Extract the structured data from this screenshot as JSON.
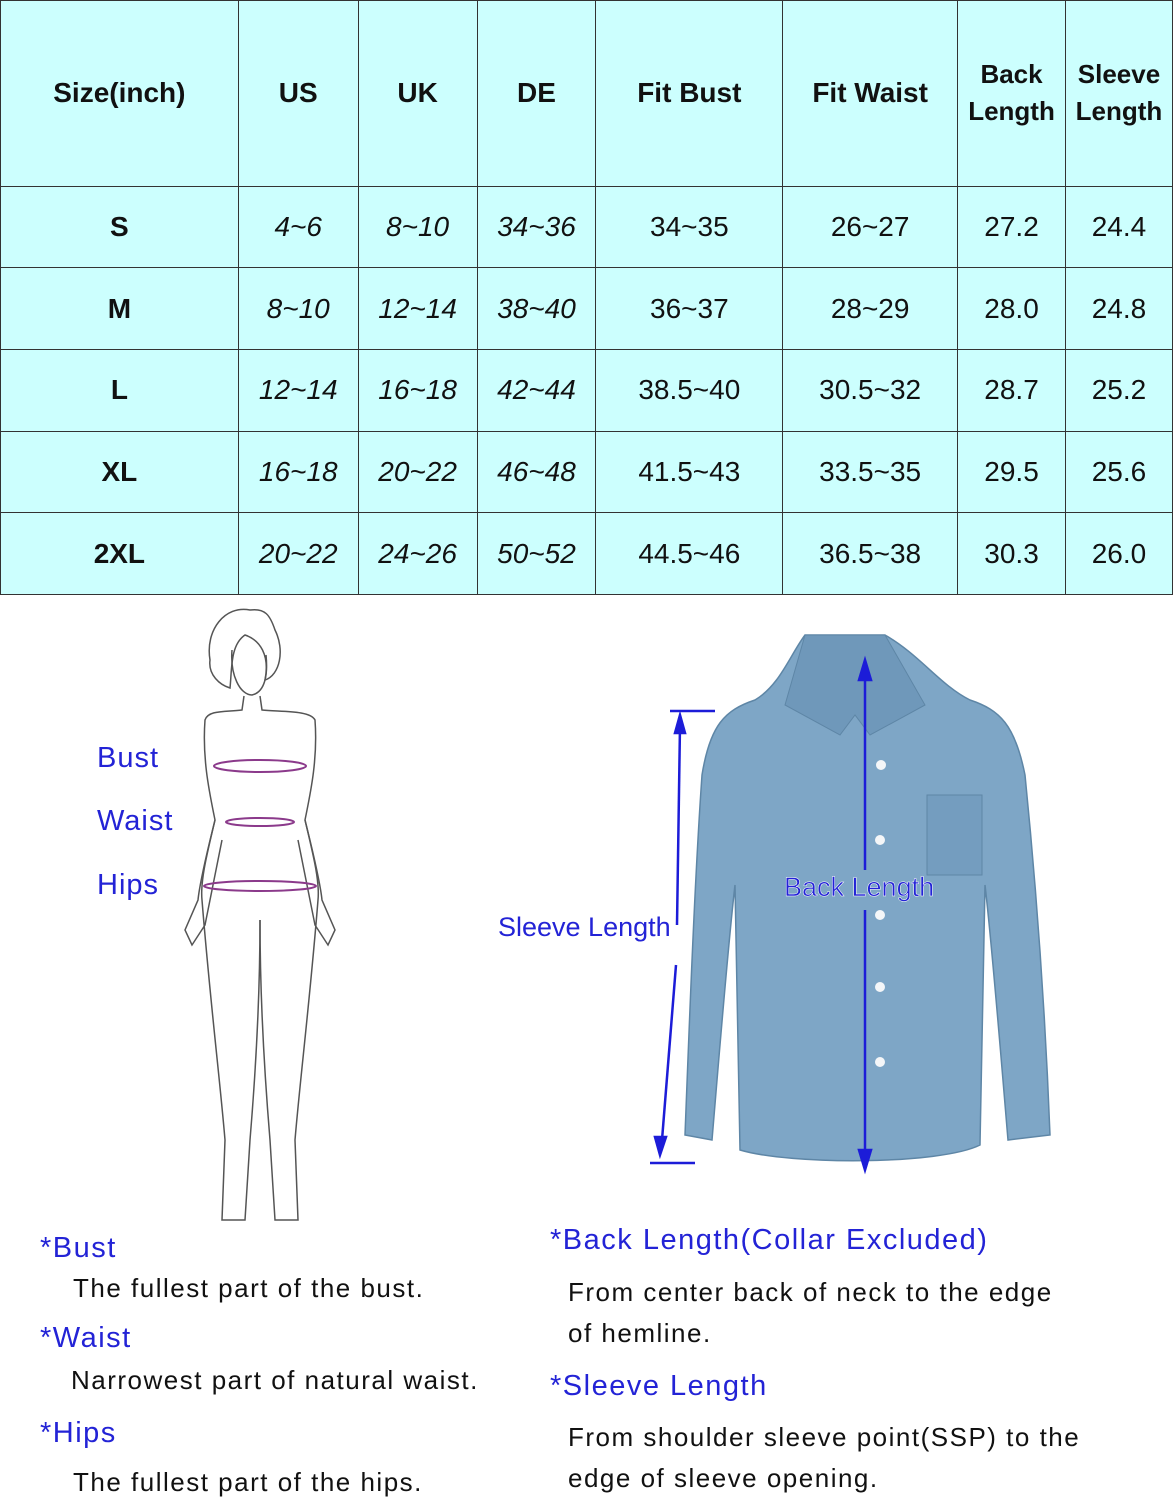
{
  "table": {
    "headers": [
      "Size(inch)",
      "US",
      "UK",
      "DE",
      "Fit Bust",
      "Fit Waist",
      "Back Length",
      "Sleeve Length"
    ],
    "headers_split": {
      "back": [
        "Back",
        "Length"
      ],
      "sleeve": [
        "Sleeve",
        "Length"
      ]
    },
    "rows": [
      [
        "S",
        "4~6",
        "8~10",
        "34~36",
        "34~35",
        "26~27",
        "27.2",
        "24.4"
      ],
      [
        "M",
        "8~10",
        "12~14",
        "38~40",
        "36~37",
        "28~29",
        "28.0",
        "24.8"
      ],
      [
        "L",
        "12~14",
        "16~18",
        "42~44",
        "38.5~40",
        "30.5~32",
        "28.7",
        "25.2"
      ],
      [
        "XL",
        "16~18",
        "20~22",
        "46~48",
        "41.5~43",
        "33.5~35",
        "29.5",
        "25.6"
      ],
      [
        "2XL",
        "20~22",
        "24~26",
        "50~52",
        "44.5~46",
        "36.5~38",
        "30.3",
        "26.0"
      ]
    ]
  },
  "body_figure": {
    "labels": {
      "bust": "Bust",
      "waist": "Waist",
      "hips": "Hips"
    }
  },
  "shirt_figure": {
    "labels": {
      "back_length": "Back Length",
      "sleeve_length": "Sleeve Length"
    }
  },
  "notes": {
    "bust": {
      "title": "*Bust",
      "text": "The fullest part of the bust."
    },
    "waist": {
      "title": "*Waist",
      "text": "Narrowest part of natural waist."
    },
    "hips": {
      "title": "*Hips",
      "text": "The fullest part of the hips."
    },
    "back_length": {
      "title": "*Back Length(Collar Excluded)",
      "line1": "From center back of neck to the edge",
      "line2": "of hemline."
    },
    "sleeve_length": {
      "title": "*Sleeve Length",
      "line1": "From shoulder sleeve point(SSP) to the",
      "line2": "edge of sleeve opening."
    }
  },
  "colors": {
    "table_bg": "#ccfffe",
    "label_blue": "#2323d6",
    "denim": "#7ea6c6"
  }
}
